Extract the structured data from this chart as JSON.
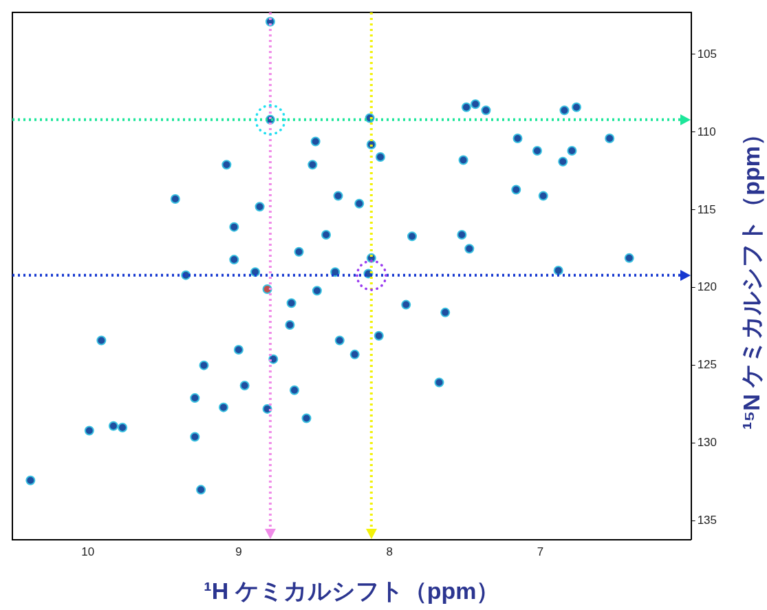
{
  "chart_data": {
    "type": "scatter",
    "xlabel": "¹H ケミカルシフト（ppm）",
    "ylabel": "¹⁵N ケミカルシフト（ppm）",
    "xlim": [
      10.5,
      6.0
    ],
    "ylim": [
      136.2,
      102.3
    ],
    "xticks": [
      10,
      9,
      8,
      7
    ],
    "yticks": [
      105,
      110,
      115,
      120,
      125,
      130,
      135
    ],
    "grid": false,
    "legend": false,
    "marker": "circle",
    "series": [
      {
        "color": "#1f4fa0",
        "x": [
          8.79,
          8.79,
          8.13,
          7.49,
          7.43,
          7.36,
          6.84,
          6.76,
          6.54,
          7.15,
          7.02,
          6.79,
          6.85,
          8.49,
          8.12,
          8.06,
          8.51,
          7.51,
          9.08,
          7.16,
          6.98,
          8.34,
          8.2,
          8.86,
          9.42,
          9.03,
          8.42,
          8.6,
          7.85,
          7.52,
          7.47,
          9.03,
          8.12,
          6.41,
          9.35,
          8.89,
          8.36,
          8.14,
          6.88,
          8.48,
          8.65,
          7.89,
          7.63,
          8.66,
          9.91,
          8.33,
          8.07,
          8.23,
          9.0,
          8.77,
          9.23,
          8.96,
          7.67,
          9.29,
          8.63,
          9.1,
          8.81,
          8.55,
          9.99,
          9.83,
          9.77,
          9.29,
          10.38,
          9.25
        ],
        "values": [
          102.9,
          109.2,
          109.1,
          108.4,
          108.2,
          108.6,
          108.6,
          108.4,
          110.4,
          110.4,
          111.2,
          111.2,
          111.9,
          110.6,
          110.8,
          111.6,
          112.1,
          111.8,
          112.1,
          113.7,
          114.1,
          114.1,
          114.6,
          114.8,
          114.3,
          116.1,
          116.6,
          117.7,
          116.7,
          116.6,
          117.5,
          118.2,
          118.1,
          118.1,
          119.2,
          119.0,
          119.0,
          119.1,
          118.9,
          120.2,
          121.0,
          121.1,
          121.6,
          122.4,
          123.4,
          123.4,
          123.1,
          124.3,
          124.0,
          124.6,
          125.0,
          126.3,
          126.1,
          127.1,
          126.6,
          127.7,
          127.8,
          128.4,
          129.2,
          128.9,
          129.0,
          129.6,
          132.4,
          133.0
        ]
      },
      {
        "color": "#c0504d",
        "x": [
          8.81
        ],
        "values": [
          120.1
        ]
      }
    ],
    "ref_lines": [
      {
        "axis": "x",
        "value": 8.79,
        "color": "#f08ce8",
        "line_style": "dotted"
      },
      {
        "axis": "y",
        "value": 109.2,
        "color": "#1de69a",
        "line_style": "dotted"
      },
      {
        "axis": "x",
        "value": 8.12,
        "color": "#f2f20a",
        "line_style": "dotted"
      },
      {
        "axis": "y",
        "value": 119.2,
        "color": "#1638d0",
        "line_style": "dotted"
      }
    ]
  }
}
